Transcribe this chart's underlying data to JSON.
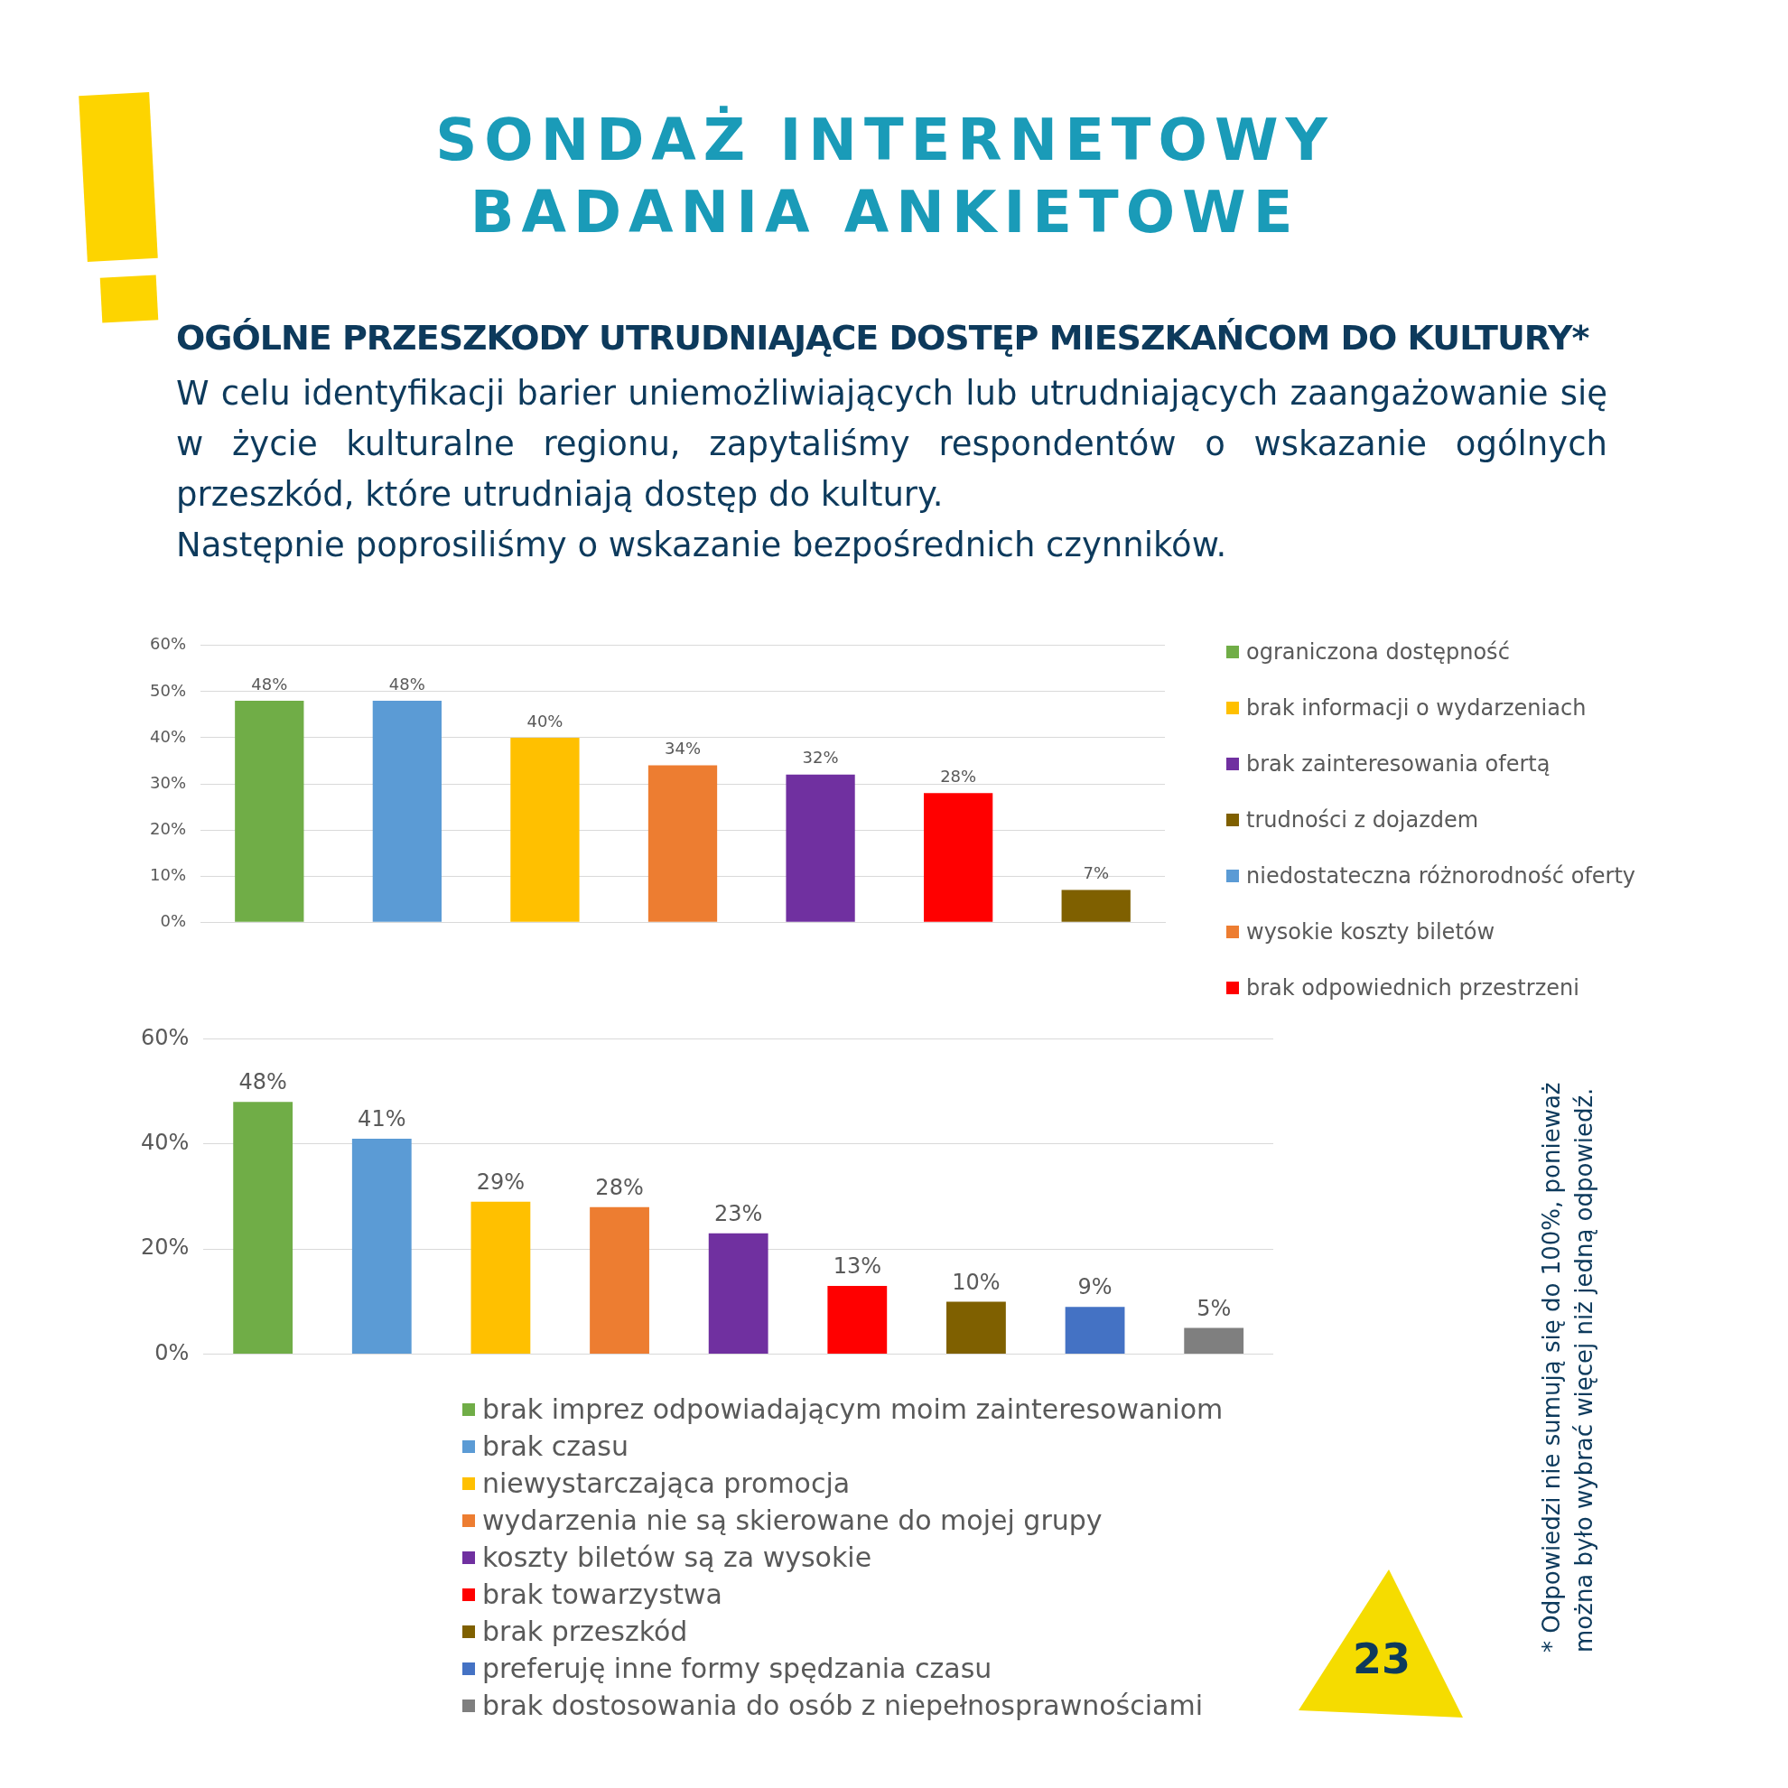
{
  "chart_data": [
    {
      "type": "bar",
      "title": "SONDAŻ INTERNETOWY\nBADANIA ANKIETOWE",
      "subtitle": "OGÓLNE PRZESZKODY UTRUDNIAJĄCE DOSTĘP MIESZKAŃCOM DO KULTURY*",
      "annotations": [
        "W celu identyfikacji barier uniemożliwiających lub utrudniających zaangażowanie się w życie kulturalne regionu, zapytaliśmy respondentów o wskazanie ogólnych przeszkód, które utrudniają dostęp do kultury.",
        "Następnie poprosiliśmy o wskazanie bezpośrednich czynników."
      ],
      "categories": [
        null,
        null,
        null,
        null,
        null,
        null,
        null
      ],
      "series": [
        {
          "name": "ograniczona dostępność",
          "color": "#70ad47",
          "values": [
            48,
            null,
            null,
            null,
            null,
            null,
            null
          ],
          "value_labels": [
            "48%",
            null,
            null,
            null,
            null,
            null,
            null
          ]
        },
        {
          "name": "brak informacji o wydarzeniach",
          "color": "#ffc000",
          "values": [
            null,
            null,
            40,
            null,
            null,
            null,
            null
          ],
          "value_labels": [
            null,
            null,
            "40%",
            null,
            null,
            null,
            null
          ]
        },
        {
          "name": "brak zainteresowania ofertą",
          "color": "#7030a0",
          "values": [
            null,
            null,
            null,
            null,
            32,
            null,
            null
          ],
          "value_labels": [
            null,
            null,
            null,
            null,
            "32%",
            null,
            null
          ]
        },
        {
          "name": "trudności z dojazdem",
          "color": "#7f6000",
          "values": [
            null,
            null,
            null,
            null,
            null,
            null,
            7
          ],
          "value_labels": [
            null,
            null,
            null,
            null,
            null,
            null,
            "7%"
          ]
        },
        {
          "name": "niedostateczna różnorodność oferty",
          "color": "#5b9bd5",
          "values": [
            null,
            48,
            null,
            null,
            null,
            null,
            null
          ],
          "value_labels": [
            null,
            "48%",
            null,
            null,
            null,
            null,
            null
          ]
        },
        {
          "name": "wysokie koszty biletów",
          "color": "#ed7d31",
          "values": [
            null,
            null,
            null,
            34,
            null,
            null,
            null
          ],
          "value_labels": [
            null,
            null,
            null,
            "34%",
            null,
            null,
            null
          ]
        },
        {
          "name": "brak odpowiednich przestrzeni",
          "color": "#ff0000",
          "values": [
            null,
            null,
            null,
            null,
            null,
            28,
            null
          ],
          "value_labels": [
            null,
            null,
            null,
            null,
            null,
            "28%",
            null
          ]
        }
      ],
      "ylim": [
        0,
        60
      ],
      "yticks": [
        {
          "value": 0,
          "label": "0%"
        },
        {
          "value": 10,
          "label": "10%"
        },
        {
          "value": 20,
          "label": "20%"
        },
        {
          "value": 30,
          "label": "30%"
        },
        {
          "value": 40,
          "label": "40%"
        },
        {
          "value": 50,
          "label": "50%"
        },
        {
          "value": 60,
          "label": "60%"
        }
      ],
      "grid": "y",
      "legend": "right",
      "tick_labels": "y"
    },
    {
      "type": "bar",
      "annotations": [
        "* Odpowiedzi nie sumują się do 100%, ponieważ\nmożna było wybrać więcej niż jedną odpowiedź.",
        "23"
      ],
      "categories": [
        null,
        null,
        null,
        null,
        null,
        null,
        null,
        null,
        null
      ],
      "series": [
        {
          "name": "brak imprez odpowiadającym moim zainteresowaniom",
          "color": "#70ad47",
          "values": [
            48,
            null,
            null,
            null,
            null,
            null,
            null,
            null,
            null
          ],
          "value_labels": [
            "48%",
            null,
            null,
            null,
            null,
            null,
            null,
            null,
            null
          ]
        },
        {
          "name": "brak czasu",
          "color": "#5b9bd5",
          "values": [
            null,
            41,
            null,
            null,
            null,
            null,
            null,
            null,
            null
          ],
          "value_labels": [
            null,
            "41%",
            null,
            null,
            null,
            null,
            null,
            null,
            null
          ]
        },
        {
          "name": "niewystarczająca promocja",
          "color": "#ffc000",
          "values": [
            null,
            null,
            29,
            null,
            null,
            null,
            null,
            null,
            null
          ],
          "value_labels": [
            null,
            null,
            "29%",
            null,
            null,
            null,
            null,
            null,
            null
          ]
        },
        {
          "name": "wydarzenia nie są skierowane do mojej grupy",
          "color": "#ed7d31",
          "values": [
            null,
            null,
            null,
            28,
            null,
            null,
            null,
            null,
            null
          ],
          "value_labels": [
            null,
            null,
            null,
            "28%",
            null,
            null,
            null,
            null,
            null
          ]
        },
        {
          "name": "koszty biletów są za wysokie",
          "color": "#7030a0",
          "values": [
            null,
            null,
            null,
            null,
            23,
            null,
            null,
            null,
            null
          ],
          "value_labels": [
            null,
            null,
            null,
            null,
            "23%",
            null,
            null,
            null,
            null
          ]
        },
        {
          "name": "brak towarzystwa",
          "color": "#ff0000",
          "values": [
            null,
            null,
            null,
            null,
            null,
            13,
            null,
            null,
            null
          ],
          "value_labels": [
            null,
            null,
            null,
            null,
            null,
            "13%",
            null,
            null,
            null
          ]
        },
        {
          "name": "brak przeszkód",
          "color": "#7f6000",
          "values": [
            null,
            null,
            null,
            null,
            null,
            null,
            10,
            null,
            null
          ],
          "value_labels": [
            null,
            null,
            null,
            null,
            null,
            null,
            "10%",
            null,
            null
          ]
        },
        {
          "name": "preferuję inne formy spędzania czasu",
          "color": "#4472c4",
          "values": [
            null,
            null,
            null,
            null,
            null,
            null,
            null,
            9,
            null
          ],
          "value_labels": [
            null,
            null,
            null,
            null,
            null,
            null,
            null,
            "9%",
            null
          ]
        },
        {
          "name": "brak dostosowania do osób z niepełnosprawnościami",
          "color": "#7f7f7f",
          "values": [
            null,
            null,
            null,
            null,
            null,
            null,
            null,
            null,
            5
          ],
          "value_labels": [
            null,
            null,
            null,
            null,
            null,
            null,
            null,
            null,
            "5%"
          ]
        }
      ],
      "ylim": [
        0,
        60
      ],
      "yticks": [
        {
          "value": 0,
          "label": "0%"
        },
        {
          "value": 20,
          "label": "20%"
        },
        {
          "value": 40,
          "label": "40%"
        },
        {
          "value": 60,
          "label": "60%"
        }
      ],
      "grid": "y",
      "legend": "bottom",
      "tick_labels": "y"
    }
  ]
}
